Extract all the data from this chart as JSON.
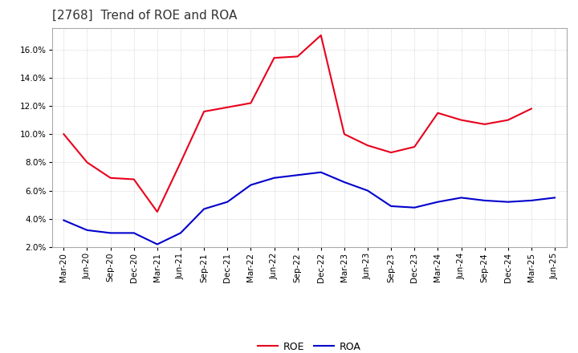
{
  "title": "[2768]  Trend of ROE and ROA",
  "x_labels": [
    "Mar-20",
    "Jun-20",
    "Sep-20",
    "Dec-20",
    "Mar-21",
    "Jun-21",
    "Sep-21",
    "Dec-21",
    "Mar-22",
    "Jun-22",
    "Sep-22",
    "Dec-22",
    "Mar-23",
    "Jun-23",
    "Sep-23",
    "Dec-23",
    "Mar-24",
    "Jun-24",
    "Sep-24",
    "Dec-24",
    "Mar-25",
    "Jun-25"
  ],
  "roe": [
    10.0,
    8.0,
    6.9,
    6.8,
    4.5,
    8.0,
    11.6,
    11.9,
    12.2,
    15.4,
    15.5,
    17.0,
    10.0,
    9.2,
    8.7,
    9.1,
    11.5,
    11.0,
    10.7,
    11.0,
    11.8,
    null
  ],
  "roa": [
    3.9,
    3.2,
    3.0,
    3.0,
    2.2,
    3.0,
    4.7,
    5.2,
    6.4,
    6.9,
    7.1,
    7.3,
    6.6,
    6.0,
    4.9,
    4.8,
    5.2,
    5.5,
    5.3,
    5.2,
    5.3,
    5.5
  ],
  "roe_color": "#e8001c",
  "roa_color": "#0000cc",
  "ylim": [
    2.0,
    17.5
  ],
  "yticks": [
    2.0,
    4.0,
    6.0,
    8.0,
    10.0,
    12.0,
    14.0,
    16.0
  ],
  "background_color": "#ffffff",
  "plot_bg_color": "#ffffff",
  "grid_color": "#b0b0b0",
  "title_fontsize": 11,
  "tick_fontsize": 7.5,
  "legend_fontsize": 9
}
